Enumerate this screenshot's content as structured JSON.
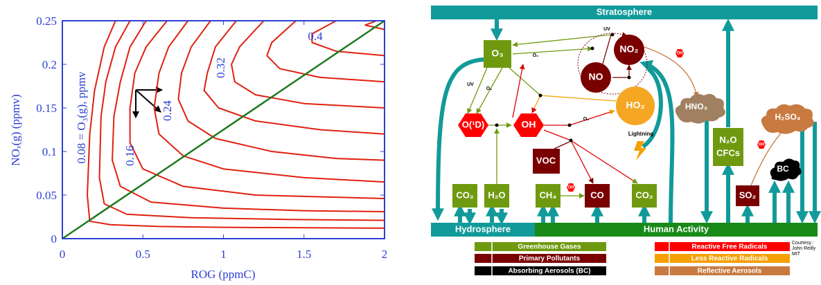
{
  "chart_data": {
    "type": "contour",
    "xlabel": "ROG (ppmC)",
    "ylabel": "NOₓ(g) (ppmv)",
    "xlim": [
      0,
      2
    ],
    "ylim": [
      0,
      0.25
    ],
    "xticks": [
      0,
      0.5,
      1,
      1.5,
      2
    ],
    "yticks": [
      0,
      0.05,
      0.1,
      0.15,
      0.2,
      0.25
    ],
    "axis_color": "#2c3fd0",
    "contour_color": "#e0200f",
    "contours": [
      {
        "x": [
          0.33,
          0.26,
          0.2,
          0.17,
          0.155,
          0.17,
          0.3,
          0.6,
          1,
          2
        ],
        "y": [
          0.25,
          0.22,
          0.17,
          0.12,
          0.05,
          0.02,
          0.016,
          0.014,
          0.013,
          0.012
        ]
      },
      {
        "x": [
          0.42,
          0.33,
          0.27,
          0.24,
          0.23,
          0.26,
          0.4,
          0.8,
          1.4,
          2
        ],
        "y": [
          0.25,
          0.22,
          0.18,
          0.14,
          0.07,
          0.04,
          0.028,
          0.024,
          0.022,
          0.021
        ]
      },
      {
        "x": [
          0.52,
          0.42,
          0.36,
          0.32,
          0.31,
          0.36,
          0.55,
          1,
          1.5,
          2
        ],
        "y": [
          0.25,
          0.22,
          0.18,
          0.14,
          0.09,
          0.06,
          0.042,
          0.035,
          0.032,
          0.031
        ]
      },
      {
        "x": [
          0.65,
          0.52,
          0.45,
          0.42,
          0.42,
          0.5,
          0.75,
          1.2,
          2
        ],
        "y": [
          0.25,
          0.22,
          0.19,
          0.15,
          0.11,
          0.08,
          0.06,
          0.05,
          0.046
        ]
      },
      {
        "x": [
          0.78,
          0.66,
          0.6,
          0.57,
          0.6,
          0.75,
          1,
          1.5,
          2
        ],
        "y": [
          0.25,
          0.22,
          0.19,
          0.15,
          0.12,
          0.095,
          0.08,
          0.07,
          0.065
        ]
      },
      {
        "x": [
          0.92,
          0.8,
          0.74,
          0.72,
          0.78,
          0.95,
          1.3,
          1.7,
          2
        ],
        "y": [
          0.25,
          0.22,
          0.19,
          0.16,
          0.135,
          0.115,
          0.1,
          0.092,
          0.09
        ]
      },
      {
        "x": [
          1.08,
          0.95,
          0.9,
          0.88,
          0.97,
          1.2,
          1.6,
          2
        ],
        "y": [
          0.25,
          0.22,
          0.19,
          0.17,
          0.15,
          0.135,
          0.125,
          0.12
        ]
      },
      {
        "x": [
          1.25,
          1.1,
          1.05,
          1.07,
          1.2,
          1.5,
          2
        ],
        "y": [
          0.25,
          0.22,
          0.2,
          0.18,
          0.165,
          0.155,
          0.15
        ]
      },
      {
        "x": [
          1.45,
          1.3,
          1.27,
          1.35,
          1.6,
          2
        ],
        "y": [
          0.25,
          0.225,
          0.21,
          0.195,
          0.185,
          0.18
        ]
      },
      {
        "x": [
          1.7,
          1.55,
          1.55,
          1.7,
          2
        ],
        "y": [
          0.25,
          0.235,
          0.225,
          0.215,
          0.21
        ]
      },
      {
        "x": [
          1.95,
          1.88,
          2
        ],
        "y": [
          0.25,
          0.245,
          0.24
        ]
      }
    ],
    "lines": [
      {
        "x": [
          0,
          2
        ],
        "y": [
          0,
          0.25
        ],
        "color": "#1d7a1d"
      }
    ],
    "annotations": [
      "0.08 = O₃(g), ppmv",
      "0.16",
      "0.24",
      "0.32",
      "0.4"
    ]
  },
  "diagram": {
    "bands": [
      "Stratosphere",
      "Hydrosphere",
      "Human Activity"
    ],
    "labels": [
      "O₃",
      "O(¹D)",
      "OH",
      "NO₂",
      "NO",
      "HO₂",
      "HNO₃",
      "H₂SO₄",
      "BC",
      "VOC",
      "CO₂",
      "H₂O",
      "CH₄",
      "CO",
      "CO₂",
      "SO₂",
      "N₂O",
      "CFCs"
    ],
    "small_labels": [
      "UV",
      "UV",
      "O₂",
      "O₂",
      "O₂",
      "OH",
      "OH",
      "OH",
      "Lightning"
    ],
    "legend": [
      "Greenhouse Gases",
      "Primary Pollutants",
      "Absorbing Aerosols (BC)",
      "Reactive Free Radicals",
      "Less Reactive Radicals",
      "Reflective Aerosols"
    ],
    "credit": [
      "Courtesy :",
      "John Reilly",
      "MIT"
    ]
  }
}
